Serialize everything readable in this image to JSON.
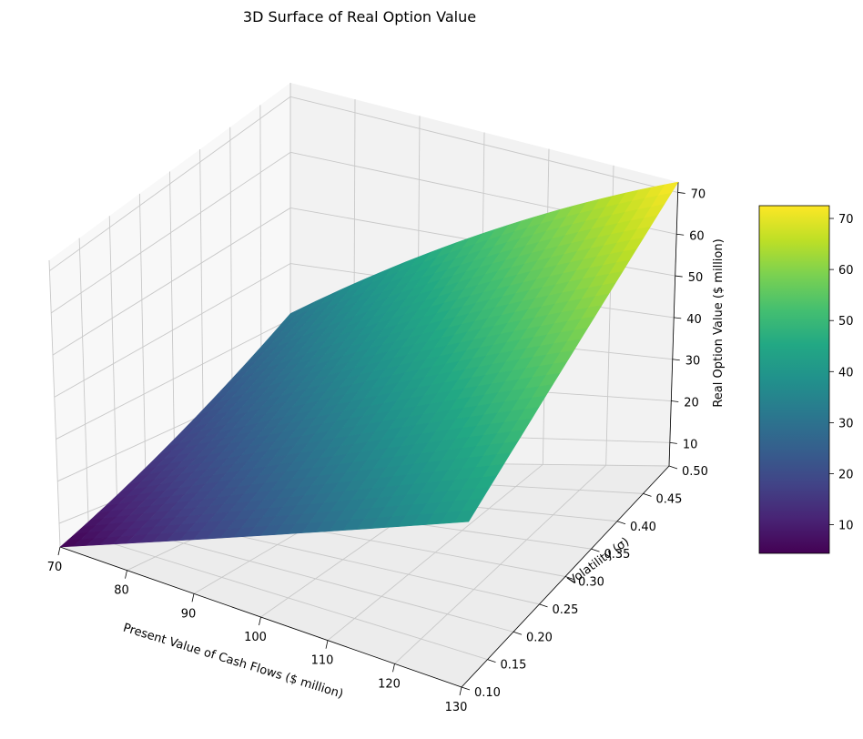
{
  "chart_data": {
    "type": "surface3d",
    "title": "3D Surface of Real Option Value",
    "xlabel": "Present Value of Cash Flows ($ million)",
    "ylabel": "Volatility (σ)",
    "zlabel": "Real Option Value ($ million)",
    "xlim": [
      70,
      130
    ],
    "ylim": [
      0.1,
      0.5
    ],
    "zlim": [
      4.4,
      72.5
    ],
    "x_ticks": [
      70,
      80,
      90,
      100,
      110,
      120,
      130
    ],
    "y_ticks": [
      0.1,
      0.15,
      0.2,
      0.25,
      0.3,
      0.35,
      0.4,
      0.45,
      0.5
    ],
    "z_ticks": [
      10,
      20,
      30,
      40,
      50,
      60,
      70
    ],
    "corner_values": [
      {
        "x": 70,
        "y": 0.1,
        "z": 4.4
      },
      {
        "x": 130,
        "y": 0.1,
        "z": 42.5
      },
      {
        "x": 70,
        "y": 0.5,
        "z": 31.0
      },
      {
        "x": 130,
        "y": 0.5,
        "z": 72.5
      }
    ],
    "colormap": "viridis",
    "colorbar": {
      "min": 4.4,
      "max": 72.5,
      "ticks": [
        10,
        20,
        30,
        40,
        50,
        60,
        70
      ]
    },
    "grid": true
  }
}
